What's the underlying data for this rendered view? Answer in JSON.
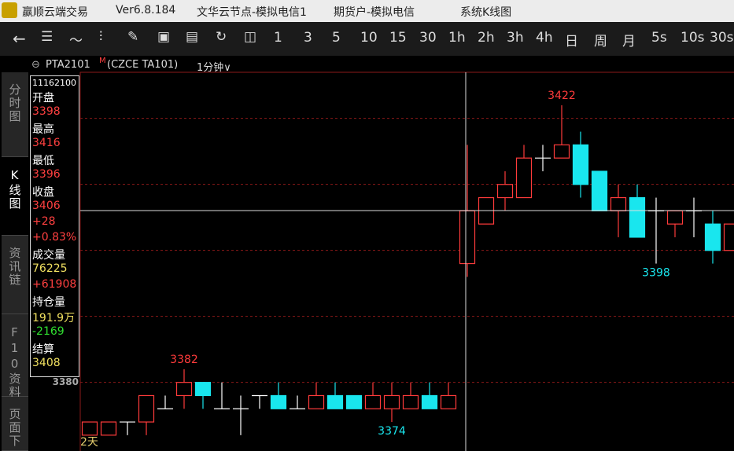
{
  "title_bar": {
    "app": "赢顺云端交易",
    "version": "Ver6.8.184",
    "server": "文华云节点-模拟电信1",
    "account": "期货户-模拟电信",
    "view": "系统K线图"
  },
  "toolbar": {
    "periods": [
      "1",
      "3",
      "5",
      "10",
      "15",
      "30",
      "1h",
      "2h",
      "3h",
      "4h",
      "日",
      "周",
      "月",
      "5s",
      "10s",
      "30s"
    ]
  },
  "header": {
    "symbol": "PTA2101",
    "marker": "M",
    "exchange": "(CZCE TA101)",
    "period": "1分钟∨"
  },
  "tabs": [
    "分时图",
    "K线图",
    "资讯链",
    "F10资料",
    "页面下"
  ],
  "info_panel": {
    "time": "11162100",
    "rows": [
      {
        "text": "开盘",
        "color": "#ffffff"
      },
      {
        "text": "3398",
        "color": "#ff4040"
      },
      {
        "text": "最高",
        "color": "#ffffff"
      },
      {
        "text": "3416",
        "color": "#ff4040"
      },
      {
        "text": "最低",
        "color": "#ffffff"
      },
      {
        "text": "3396",
        "color": "#ff4040"
      },
      {
        "text": "收盘",
        "color": "#ffffff"
      },
      {
        "text": "3406",
        "color": "#ff4040"
      },
      {
        "text": "+28",
        "color": "#ff4040"
      },
      {
        "text": "+0.83%",
        "color": "#ff4040"
      },
      {
        "text": "成交量",
        "color": "#ffffff"
      },
      {
        "text": "76225",
        "color": "#f0e060"
      },
      {
        "text": "+61908",
        "color": "#ff4040"
      },
      {
        "text": "持仓量",
        "color": "#ffffff"
      },
      {
        "text": "191.9万",
        "color": "#f0e060"
      },
      {
        "text": "-2169",
        "color": "#30e030"
      },
      {
        "text": "结算",
        "color": "#ffffff"
      },
      {
        "text": "3408",
        "color": "#f0e060"
      }
    ]
  },
  "chart_data": {
    "type": "candlestick",
    "open": [
      3372,
      3372,
      3374,
      3374,
      3376,
      3378,
      3380,
      3376,
      3376,
      3378,
      3378,
      3376,
      3376,
      3378,
      3378,
      3376,
      3376,
      3376,
      3378,
      3376,
      3398,
      3404,
      3408,
      3408,
      3414,
      3414,
      3416,
      3412,
      3406,
      3408,
      3406,
      3404,
      3406,
      3404,
      3400
    ],
    "high": [
      3374,
      3374,
      3374,
      3378,
      3378,
      3382,
      3380,
      3380,
      3378,
      3378,
      3380,
      3378,
      3380,
      3380,
      3378,
      3380,
      3380,
      3380,
      3380,
      3380,
      3416,
      3408,
      3412,
      3416,
      3416,
      3422,
      3418,
      3412,
      3410,
      3410,
      3408,
      3406,
      3408,
      3406,
      3404
    ],
    "low": [
      3372,
      3372,
      3372,
      3372,
      3376,
      3376,
      3376,
      3376,
      3372,
      3376,
      3376,
      3376,
      3376,
      3376,
      3376,
      3376,
      3374,
      3376,
      3376,
      3376,
      3396,
      3404,
      3406,
      3408,
      3412,
      3414,
      3408,
      3406,
      3402,
      3402,
      3398,
      3402,
      3402,
      3398,
      3400
    ],
    "close": [
      3374,
      3374,
      3374,
      3378,
      3376,
      3380,
      3378,
      3376,
      3376,
      3378,
      3376,
      3376,
      3378,
      3376,
      3376,
      3378,
      3378,
      3378,
      3376,
      3378,
      3406,
      3408,
      3410,
      3414,
      3414,
      3416,
      3410,
      3406,
      3408,
      3402,
      3406,
      3406,
      3406,
      3400,
      3404
    ],
    "ylim": [
      3369.6,
      3427
    ],
    "yticks": [
      3380
    ],
    "annotations": [
      {
        "text": "3382",
        "value": 3382
      },
      {
        "text": "3374",
        "value": 3374
      },
      {
        "text": "3422",
        "value": 3422
      },
      {
        "text": "3398",
        "value": 3398
      }
    ],
    "period_label": "2天",
    "up_color": "#ff3b3b",
    "down_color": "#19e6ee",
    "flat_color": "#ffffff"
  }
}
